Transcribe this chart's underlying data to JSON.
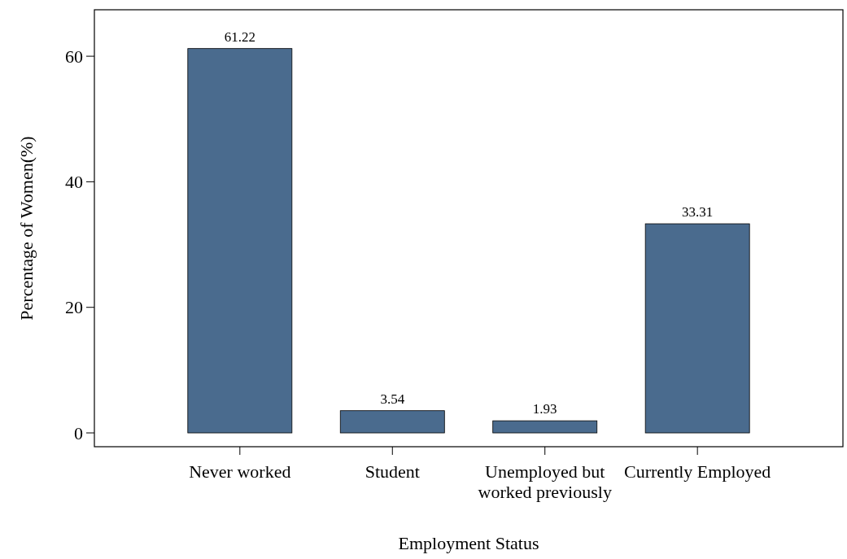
{
  "chart_data": {
    "type": "bar",
    "xlabel": "Employment Status",
    "ylabel": "Percentage of Women(%)",
    "categories": [
      "Never worked",
      "Student",
      "Unemployed but worked previously",
      "Currently Employed"
    ],
    "values": [
      61.22,
      3.54,
      1.93,
      33.31
    ],
    "color": "#4a6b8e",
    "ylim": [
      -2.2,
      67.4
    ],
    "yticks": [
      0,
      20,
      40,
      60
    ],
    "grid": false,
    "data_labels": true
  }
}
